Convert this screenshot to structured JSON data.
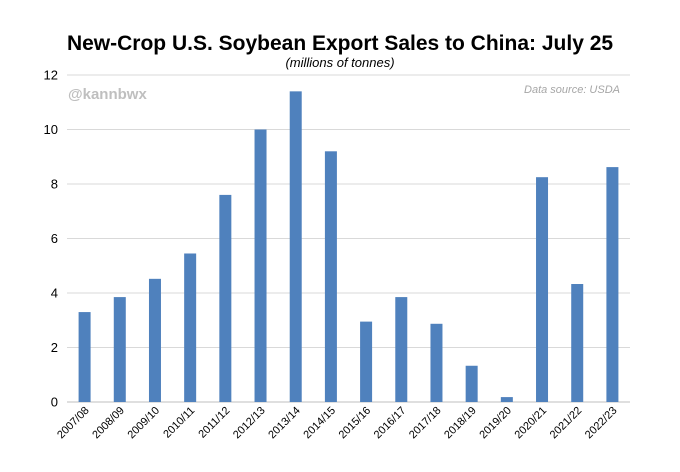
{
  "chart_data": {
    "type": "bar",
    "title": "New-Crop U.S. Soybean Export Sales to China: July 25",
    "subtitle": "(millions of tonnes)",
    "watermark": "@kannbwx",
    "source_note": "Data source: USDA",
    "xlabel": "",
    "ylabel": "",
    "ylim": [
      0,
      12
    ],
    "yticks": [
      0,
      2,
      4,
      6,
      8,
      10,
      12
    ],
    "grid": true,
    "categories": [
      "2007/08",
      "2008/09",
      "2009/10",
      "2010/11",
      "2011/12",
      "2012/13",
      "2013/14",
      "2014/15",
      "2015/16",
      "2016/17",
      "2017/18",
      "2018/19",
      "2019/20",
      "2020/21",
      "2021/22",
      "2022/23"
    ],
    "values": [
      3.3,
      3.85,
      4.52,
      5.45,
      7.6,
      10.0,
      11.4,
      9.2,
      2.95,
      3.85,
      2.87,
      1.33,
      0.18,
      8.25,
      4.33,
      8.62
    ],
    "bar_color": "#4f81bd",
    "grid_color": "#d9d9d9",
    "watermark_color": "#bfbfbf",
    "source_color": "#a6a6a6"
  }
}
